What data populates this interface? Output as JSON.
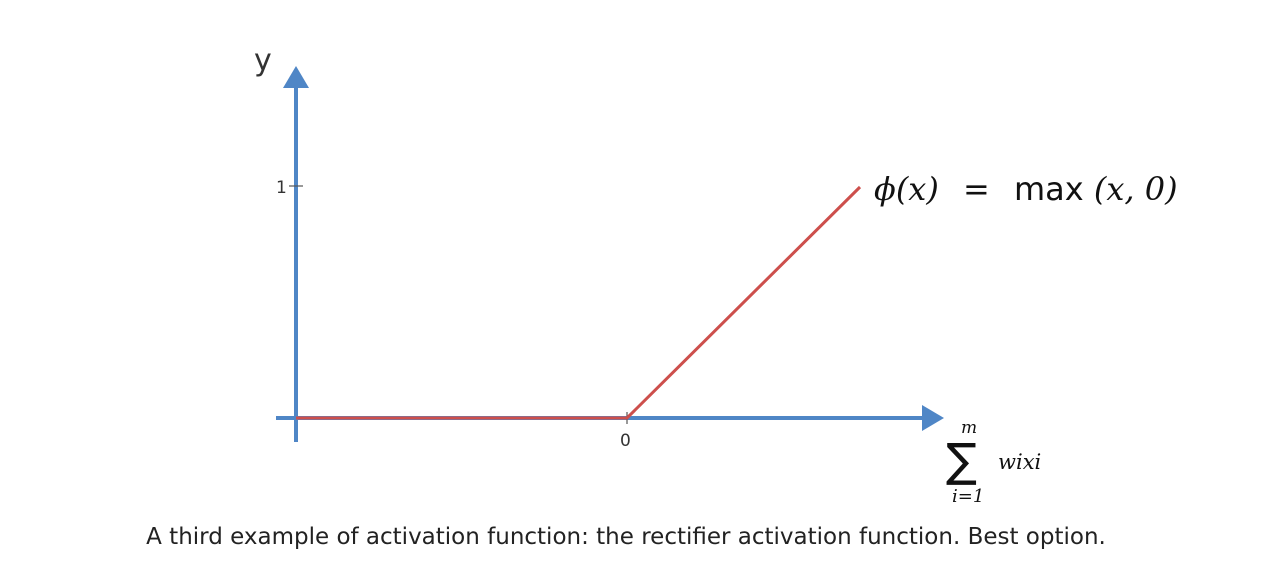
{
  "diagram": {
    "y_axis_label": "y",
    "y_tick_label": "1",
    "x_tick_label": "0",
    "function_label": {
      "lhs": "ϕ(x)",
      "equals": "=",
      "rhs_func": "max",
      "rhs_args": "(x, 0)"
    },
    "x_axis_label": {
      "sum_symbol": "∑",
      "upper_limit": "m",
      "lower_limit": "i=1",
      "term": "wixi"
    }
  },
  "caption": "A third example of activation function: the rectifier activation function. Best option.",
  "colors": {
    "axis": "#4f86c6",
    "curve": "#cd4f4c"
  }
}
